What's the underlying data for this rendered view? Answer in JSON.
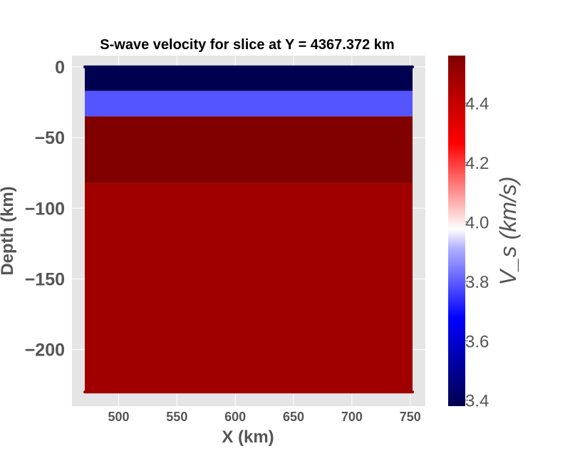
{
  "chart_data": {
    "type": "heatmap",
    "title": "S-wave velocity for slice at Y = 4367.372 km",
    "xlabel": "X (km)",
    "ylabel": "Depth (km)",
    "colorbar_label": "V_s (km/s)",
    "xlim": [
      460,
      763
    ],
    "ylim": [
      -240,
      8
    ],
    "x_range": [
      471,
      752
    ],
    "x_ticks": [
      "500",
      "550",
      "600",
      "650",
      "700",
      "750"
    ],
    "y_ticks": [
      "0",
      "−50",
      "−100",
      "−150",
      "−200"
    ],
    "colorbar_ticks": [
      "3.4",
      "3.6",
      "3.8",
      "4.0",
      "4.2",
      "4.4"
    ],
    "colorbar_range": [
      3.38,
      4.56
    ],
    "colormap": "seismic",
    "grid": true,
    "layers": [
      {
        "depth_top": 0,
        "depth_bottom": -17,
        "vs": 3.38,
        "color": "#000050"
      },
      {
        "depth_top": -17,
        "depth_bottom": -35,
        "vs": 3.85,
        "color": "#5555ff"
      },
      {
        "depth_top": -35,
        "depth_bottom": -82,
        "vs": 4.55,
        "color": "#800000"
      },
      {
        "depth_top": -82,
        "depth_bottom": -230,
        "vs": 4.45,
        "color": "#a00000"
      }
    ]
  }
}
